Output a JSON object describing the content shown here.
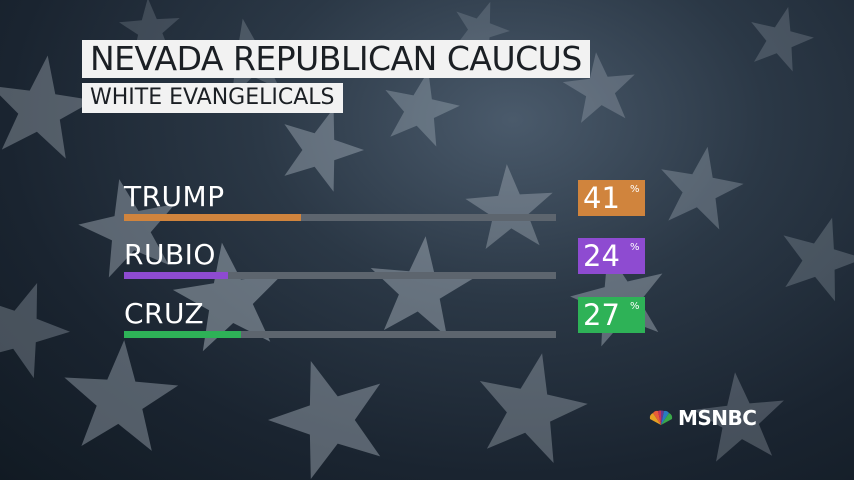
{
  "title": "NEVADA REPUBLICAN CAUCUS",
  "subtitle": "WHITE EVANGELICALS",
  "network": "MSNBC",
  "chart_data": {
    "type": "bar",
    "title": "NEVADA REPUBLICAN CAUCUS",
    "subtitle": "WHITE EVANGELICALS",
    "categories": [
      "TRUMP",
      "RUBIO",
      "CRUZ"
    ],
    "values": [
      41,
      24,
      27
    ],
    "value_labels": [
      "41",
      "24",
      "27"
    ],
    "unit": "%",
    "ylim": [
      0,
      100
    ],
    "colors": [
      "#d0843d",
      "#8e4bd1",
      "#2eb257"
    ]
  }
}
